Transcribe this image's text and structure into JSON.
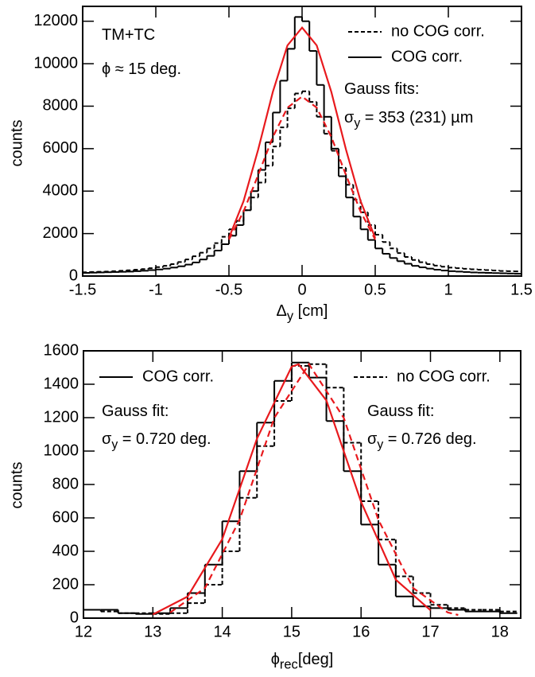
{
  "chart_data": [
    {
      "type": "histogram",
      "xlabel": {
        "text": "Δ",
        "sub": "y",
        "rest": " [cm]"
      },
      "ylabel": "counts",
      "xlim": [
        -1.5,
        1.5
      ],
      "ylim": [
        0,
        12700
      ],
      "xticks": [
        -1.5,
        -1,
        -0.5,
        0,
        0.5,
        1,
        1.5
      ],
      "yticks": [
        0,
        2000,
        4000,
        6000,
        8000,
        10000,
        12000
      ],
      "bins": [
        -1.5,
        -1.45,
        -1.4,
        -1.35,
        -1.3,
        -1.25,
        -1.2,
        -1.15,
        -1.1,
        -1.05,
        -1,
        -0.95,
        -0.9,
        -0.85,
        -0.8,
        -0.75,
        -0.7,
        -0.65,
        -0.6,
        -0.55,
        -0.5,
        -0.45,
        -0.4,
        -0.35,
        -0.3,
        -0.25,
        -0.2,
        -0.15,
        -0.1,
        -0.05,
        0,
        0.05,
        0.1,
        0.15,
        0.2,
        0.25,
        0.3,
        0.35,
        0.4,
        0.45,
        0.5,
        0.55,
        0.6,
        0.65,
        0.7,
        0.75,
        0.8,
        0.85,
        0.9,
        0.95,
        1,
        1.05,
        1.1,
        1.15,
        1.2,
        1.25,
        1.3,
        1.35,
        1.4,
        1.45,
        1.5
      ],
      "series": [
        {
          "name": "no COG corr.",
          "color": "#000000",
          "dash": true,
          "values": [
            180,
            190,
            200,
            210,
            230,
            250,
            270,
            300,
            330,
            370,
            420,
            480,
            560,
            660,
            780,
            930,
            1100,
            1300,
            1550,
            1850,
            2200,
            2600,
            3100,
            3700,
            4400,
            5200,
            6100,
            7000,
            7900,
            8600,
            8700,
            8200,
            7500,
            6700,
            5900,
            5100,
            4300,
            3600,
            3000,
            2400,
            1950,
            1600,
            1300,
            1080,
            900,
            760,
            650,
            560,
            490,
            440,
            400,
            370,
            340,
            320,
            300,
            280,
            260,
            240,
            230,
            220
          ]
        },
        {
          "name": "COG corr.",
          "color": "#000000",
          "dash": false,
          "values": [
            150,
            160,
            170,
            180,
            190,
            200,
            210,
            230,
            250,
            280,
            310,
            350,
            400,
            460,
            540,
            640,
            780,
            950,
            1200,
            1500,
            1900,
            2400,
            3100,
            4000,
            5000,
            6300,
            7700,
            9200,
            10700,
            12200,
            12000,
            10600,
            9000,
            7500,
            6000,
            4700,
            3700,
            2800,
            2200,
            1700,
            1300,
            1050,
            850,
            700,
            580,
            480,
            410,
            350,
            300,
            260,
            230,
            210,
            190,
            170,
            160,
            150,
            140,
            130,
            120,
            110
          ]
        }
      ],
      "fits": [
        {
          "color": "#e8191d",
          "dash": true,
          "x": [
            -0.5,
            -0.4,
            -0.3,
            -0.2,
            -0.1,
            0,
            0.1,
            0.2,
            0.3,
            0.4,
            0.5
          ],
          "values": [
            1720,
            3040,
            4760,
            6550,
            7930,
            8450,
            7930,
            6550,
            4760,
            3040,
            1720
          ]
        },
        {
          "color": "#e8191d",
          "dash": false,
          "x": [
            -0.5,
            -0.4,
            -0.3,
            -0.2,
            -0.1,
            0,
            0.1,
            0.2,
            0.3,
            0.4,
            0.5
          ],
          "values": [
            1800,
            3530,
            5960,
            8670,
            10860,
            11700,
            10860,
            8670,
            5960,
            3530,
            1800
          ]
        }
      ],
      "annotations": [
        {
          "text": "TM+TC"
        },
        {
          "text": "ϕ ≈ 15 deg."
        },
        {
          "text": "Gauss fits:"
        },
        {
          "text": "σ",
          "sub": "y",
          "rest": " = 353 (231) µm"
        }
      ]
    },
    {
      "type": "histogram",
      "xlabel": {
        "text": "ϕ",
        "sub": "rec",
        "rest": "[deg]"
      },
      "ylabel": "counts",
      "xlim": [
        12,
        18.3
      ],
      "ylim": [
        0,
        1600
      ],
      "xticks": [
        12,
        13,
        14,
        15,
        16,
        17,
        18
      ],
      "yticks": [
        0,
        200,
        400,
        600,
        800,
        1000,
        1200,
        1400,
        1600
      ],
      "bins": [
        12,
        12.25,
        12.5,
        12.75,
        13,
        13.25,
        13.5,
        13.75,
        14,
        14.25,
        14.5,
        14.75,
        15,
        15.25,
        15.5,
        15.75,
        16,
        16.25,
        16.5,
        16.75,
        17,
        17.25,
        17.5,
        17.75,
        18,
        18.25
      ],
      "series": [
        {
          "name": "COG corr.",
          "color": "#000000",
          "dash": false,
          "values": [
            50,
            50,
            30,
            25,
            30,
            60,
            150,
            320,
            580,
            880,
            1170,
            1420,
            1530,
            1440,
            1180,
            880,
            560,
            320,
            130,
            70,
            60,
            50,
            40,
            40,
            30
          ]
        },
        {
          "name": "no COG corr.",
          "color": "#000000",
          "dash": true,
          "values": [
            50,
            40,
            30,
            30,
            25,
            30,
            90,
            200,
            400,
            720,
            1030,
            1300,
            1510,
            1520,
            1380,
            1050,
            700,
            470,
            250,
            150,
            80,
            60,
            50,
            50,
            40
          ]
        }
      ],
      "fits": [
        {
          "color": "#e8191d",
          "dash": false,
          "x": [
            13,
            13.5,
            14,
            14.5,
            15,
            15.1,
            15.5,
            16,
            16.5,
            17
          ],
          "values": [
            22,
            129,
            473,
            1075,
            1505,
            1520,
            1303,
            696,
            230,
            47
          ]
        },
        {
          "color": "#e8191d",
          "dash": true,
          "x": [
            13.25,
            13.75,
            14.25,
            14.75,
            15.25,
            15.75,
            16.25,
            16.75,
            17.25,
            17.4
          ],
          "values": [
            34,
            180,
            588,
            1199,
            1520,
            1199,
            588,
            180,
            34,
            19
          ]
        }
      ],
      "annotations": [
        {
          "text": "Gauss fit:"
        },
        {
          "text": "σ",
          "sub": "y",
          "rest": " = 0.720 deg."
        },
        {
          "text": "Gauss fit:"
        },
        {
          "text": "σ",
          "sub": "y",
          "rest": " = 0.726 deg."
        }
      ]
    }
  ]
}
